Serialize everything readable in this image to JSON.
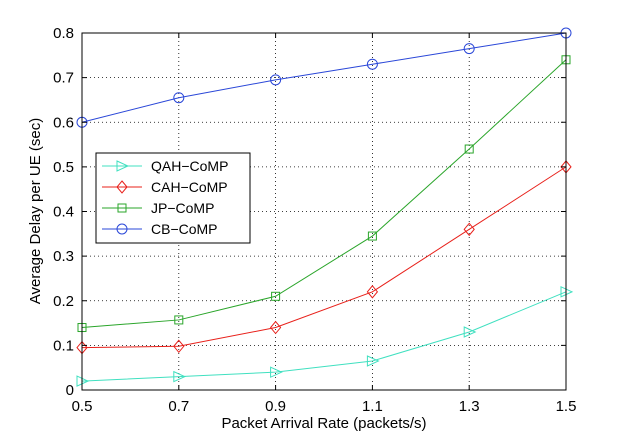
{
  "chart_data": {
    "type": "line",
    "title": "",
    "xlabel": "Packet Arrival Rate (packets/s)",
    "ylabel": "Average Delay per UE (sec)",
    "x": [
      0.5,
      0.7,
      0.9,
      1.1,
      1.3,
      1.5
    ],
    "x_tick_labels": [
      "0.5",
      "0.7",
      "0.9",
      "1.1",
      "1.3",
      "1.5"
    ],
    "y_tick_labels": [
      "0",
      "0.1",
      "0.2",
      "0.3",
      "0.4",
      "0.5",
      "0.6",
      "0.7",
      "0.8"
    ],
    "xlim": [
      0.5,
      1.5
    ],
    "ylim": [
      0,
      0.8
    ],
    "grid": true,
    "legend_position": "center-left",
    "series": [
      {
        "name": "QAH−CoMP",
        "marker": "triangle-right",
        "color": "#40e0c0",
        "values": [
          0.02,
          0.03,
          0.04,
          0.065,
          0.13,
          0.22
        ]
      },
      {
        "name": "CAH−CoMP",
        "marker": "diamond",
        "color": "#e8201a",
        "values": [
          0.095,
          0.098,
          0.14,
          0.22,
          0.36,
          0.5
        ]
      },
      {
        "name": "JP−CoMP",
        "marker": "square",
        "color": "#2aa52a",
        "values": [
          0.14,
          0.157,
          0.21,
          0.345,
          0.54,
          0.74
        ]
      },
      {
        "name": "CB−CoMP",
        "marker": "circle",
        "color": "#2a47d8",
        "values": [
          0.6,
          0.655,
          0.695,
          0.73,
          0.765,
          0.8
        ]
      }
    ]
  }
}
